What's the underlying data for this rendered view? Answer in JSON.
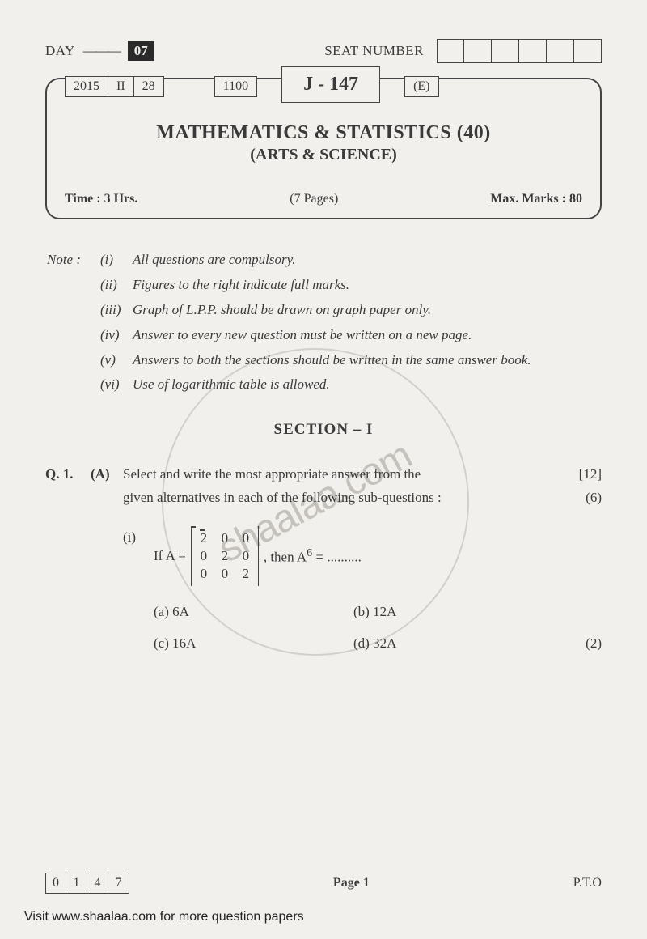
{
  "header": {
    "day_label": "DAY",
    "day_num": "07",
    "seat_label": "SEAT NUMBER",
    "seat_box_count": 6
  },
  "info": {
    "cells": [
      "2015",
      "II",
      "28"
    ],
    "cell_mid": "1100",
    "code": "J - 147",
    "cell_right": "(E)",
    "title": "MATHEMATICS & STATISTICS (40)",
    "subtitle": "(ARTS & SCIENCE)",
    "time": "Time : 3  Hrs.",
    "pages": "(7 Pages)",
    "marks": "Max. Marks : 80"
  },
  "notes": {
    "label": "Note :",
    "items": [
      {
        "n": "(i)",
        "t": "All questions are compulsory."
      },
      {
        "n": "(ii)",
        "t": "Figures to the right indicate full marks."
      },
      {
        "n": "(iii)",
        "t": "Graph of L.P.P. should be drawn on graph paper only."
      },
      {
        "n": "(iv)",
        "t": "Answer to every new question must be written on a new page."
      },
      {
        "n": "(v)",
        "t": "Answers to both the sections should be written in the same answer book."
      },
      {
        "n": "(vi)",
        "t": "Use of logarithmic table is allowed."
      }
    ]
  },
  "section": "SECTION – I",
  "q1": {
    "num": "Q. 1.",
    "part": "(A)",
    "stem1": "Select and write the most appropriate answer from the",
    "marks_total": "[12]",
    "stem2": "given alternatives in each of the following sub-questions :",
    "marks_sub": "(6)",
    "sub": {
      "n": "(i)",
      "pre": "If A =",
      "matrix": [
        [
          "2",
          "0",
          "0"
        ],
        [
          "0",
          "2",
          "0"
        ],
        [
          "0",
          "0",
          "2"
        ]
      ],
      "post": ", then A",
      "exp": "6",
      "eq": " = ..........",
      "opts": {
        "a": "(a)  6A",
        "b": "(b)  12A",
        "c": "(c)  16A",
        "d": "(d)  32A",
        "m": "(2)"
      }
    }
  },
  "footer": {
    "code_digits": [
      "0",
      "1",
      "4",
      "7"
    ],
    "page": "Page 1",
    "pto": "P.T.O"
  },
  "visit": "Visit www.shaalaa.com for more question papers",
  "watermark": "shaalaa.com"
}
